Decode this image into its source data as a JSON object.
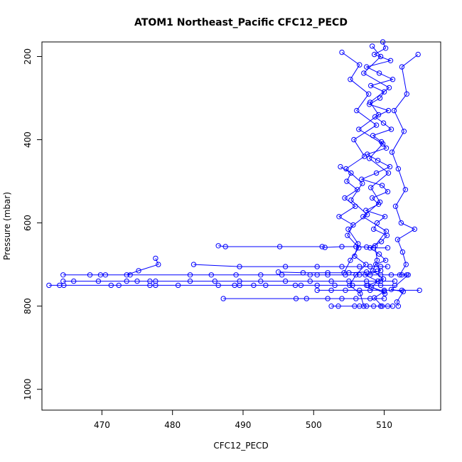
{
  "chart_data": {
    "type": "line",
    "title": "ATOM1 Northeast_Pacific CFC12_PECD",
    "xlabel": "CFC12_PECD",
    "ylabel": "Pressure (mbar)",
    "xlim": [
      461.5,
      518
    ],
    "ylim": [
      1050,
      165
    ],
    "y_inverted": true,
    "x_ticks": [
      470,
      480,
      490,
      500,
      510
    ],
    "y_ticks": [
      200,
      400,
      600,
      800,
      1000
    ],
    "grid": false,
    "legend": "none",
    "marker": "open-circle",
    "color": "#0000ff",
    "series": [
      {
        "values": [
          [
            509.8,
            165
          ],
          [
            510.2,
            180
          ],
          [
            508.6,
            195
          ],
          [
            510.9,
            210
          ],
          [
            507.5,
            225
          ],
          [
            509.3,
            240
          ],
          [
            511.2,
            255
          ],
          [
            508.1,
            270
          ],
          [
            510.0,
            285
          ],
          [
            509.4,
            300
          ],
          [
            507.9,
            315
          ],
          [
            510.6,
            330
          ],
          [
            508.7,
            345
          ],
          [
            509.9,
            360
          ],
          [
            511.0,
            375
          ],
          [
            508.4,
            390
          ],
          [
            509.6,
            405
          ],
          [
            510.3,
            420
          ],
          [
            507.6,
            435
          ],
          [
            509.1,
            450
          ],
          [
            510.8,
            465
          ],
          [
            508.9,
            480
          ],
          [
            506.8,
            495
          ],
          [
            509.7,
            510
          ],
          [
            510.5,
            525
          ],
          [
            508.3,
            540
          ],
          [
            509.2,
            555
          ],
          [
            507.4,
            570
          ],
          [
            510.1,
            585
          ],
          [
            509.0,
            600
          ],
          [
            508.5,
            615
          ],
          [
            510.4,
            630
          ],
          [
            509.6,
            645
          ],
          [
            508.0,
            660
          ],
          [
            509.3,
            675
          ],
          [
            510.2,
            690
          ],
          [
            508.8,
            700
          ],
          [
            509.5,
            715
          ],
          [
            507.3,
            725
          ],
          [
            509.1,
            740
          ],
          [
            508.2,
            755
          ],
          [
            510.0,
            765
          ],
          [
            508.6,
            780
          ],
          [
            509.7,
            800
          ]
        ]
      },
      {
        "values": [
          [
            504.0,
            190
          ],
          [
            506.5,
            220
          ],
          [
            505.2,
            255
          ],
          [
            507.8,
            290
          ],
          [
            506.1,
            330
          ],
          [
            508.9,
            365
          ],
          [
            505.7,
            400
          ],
          [
            507.2,
            440
          ],
          [
            504.6,
            470
          ],
          [
            506.9,
            505
          ],
          [
            505.3,
            545
          ],
          [
            507.6,
            580
          ],
          [
            504.9,
            615
          ],
          [
            506.3,
            650
          ],
          [
            505.8,
            680
          ],
          [
            507.4,
            700
          ],
          [
            506.0,
            725
          ],
          [
            505.1,
            750
          ],
          [
            506.6,
            770
          ],
          [
            507.1,
            800
          ]
        ]
      },
      {
        "values": [
          [
            514.8,
            195
          ],
          [
            512.5,
            225
          ],
          [
            513.2,
            290
          ],
          [
            511.4,
            330
          ],
          [
            512.8,
            380
          ],
          [
            511.1,
            430
          ],
          [
            512.0,
            470
          ],
          [
            513.0,
            520
          ],
          [
            511.6,
            560
          ],
          [
            512.4,
            600
          ],
          [
            514.3,
            615
          ],
          [
            511.9,
            640
          ],
          [
            512.6,
            670
          ],
          [
            513.1,
            700
          ],
          [
            512.2,
            725
          ],
          [
            513.4,
            725
          ],
          [
            511.0,
            760
          ],
          [
            512.7,
            765
          ],
          [
            511.8,
            790
          ],
          [
            512.0,
            800
          ]
        ]
      },
      {
        "values": [
          [
            508.3,
            175
          ],
          [
            509.5,
            200
          ],
          [
            507.1,
            240
          ],
          [
            510.7,
            275
          ],
          [
            508.0,
            310
          ],
          [
            509.2,
            340
          ],
          [
            506.4,
            375
          ],
          [
            509.8,
            410
          ],
          [
            507.9,
            445
          ],
          [
            510.6,
            480
          ],
          [
            508.1,
            515
          ],
          [
            509.4,
            550
          ],
          [
            507.0,
            585
          ],
          [
            510.3,
            620
          ],
          [
            508.7,
            655
          ],
          [
            509.0,
            690
          ],
          [
            508.4,
            715
          ],
          [
            509.9,
            735
          ],
          [
            507.7,
            750
          ],
          [
            510.1,
            770
          ]
        ]
      },
      {
        "values": [
          [
            486.5,
            655
          ],
          [
            487.5,
            657
          ],
          [
            495.2,
            657
          ],
          [
            501.2,
            657
          ],
          [
            501.6,
            659
          ],
          [
            504.0,
            657
          ],
          [
            506.0,
            657
          ],
          [
            507.5,
            658
          ],
          [
            508.5,
            660
          ],
          [
            510.5,
            660
          ]
        ]
      },
      {
        "values": [
          [
            477.6,
            685
          ],
          [
            478.0,
            700
          ],
          [
            475.2,
            715
          ],
          [
            473.5,
            725
          ],
          [
            464.5,
            725
          ],
          [
            468.3,
            725
          ],
          [
            469.8,
            725
          ],
          [
            470.5,
            725
          ],
          [
            474.0,
            725
          ],
          [
            482.5,
            725
          ],
          [
            485.5,
            725
          ],
          [
            489.0,
            725
          ],
          [
            492.5,
            725
          ],
          [
            495.5,
            725
          ],
          [
            499.5,
            725
          ],
          [
            500.5,
            725
          ],
          [
            502.0,
            725
          ],
          [
            504.5,
            725
          ],
          [
            506.5,
            725
          ],
          [
            508.0,
            725
          ],
          [
            509.5,
            725
          ],
          [
            511.0,
            725
          ],
          [
            512.5,
            725
          ],
          [
            513.2,
            725
          ]
        ]
      },
      {
        "values": [
          [
            464.5,
            740
          ],
          [
            466.0,
            740
          ],
          [
            469.5,
            740
          ],
          [
            473.5,
            740
          ],
          [
            475.0,
            740
          ],
          [
            476.8,
            740
          ],
          [
            477.6,
            740
          ],
          [
            482.5,
            740
          ],
          [
            486.0,
            740
          ],
          [
            489.5,
            740
          ],
          [
            492.5,
            740
          ],
          [
            496.0,
            740
          ],
          [
            499.5,
            740
          ],
          [
            502.5,
            740
          ],
          [
            505.0,
            740
          ],
          [
            507.5,
            740
          ],
          [
            509.5,
            740
          ],
          [
            511.5,
            740
          ]
        ]
      },
      {
        "values": [
          [
            462.5,
            750
          ],
          [
            464.0,
            750
          ],
          [
            464.6,
            750
          ],
          [
            471.3,
            750
          ],
          [
            472.4,
            750
          ],
          [
            476.8,
            750
          ],
          [
            477.6,
            750
          ],
          [
            480.8,
            750
          ],
          [
            486.5,
            750
          ],
          [
            488.8,
            750
          ],
          [
            489.5,
            750
          ],
          [
            491.5,
            750
          ],
          [
            493.2,
            750
          ],
          [
            497.4,
            750
          ],
          [
            498.2,
            750
          ],
          [
            500.5,
            750
          ],
          [
            503.0,
            750
          ],
          [
            505.5,
            750
          ],
          [
            507.5,
            750
          ],
          [
            509.5,
            750
          ],
          [
            511.5,
            750
          ]
        ]
      },
      {
        "values": [
          [
            483.0,
            700
          ],
          [
            489.5,
            705
          ],
          [
            496.0,
            705
          ],
          [
            500.5,
            705
          ],
          [
            504.0,
            705
          ],
          [
            506.5,
            705
          ],
          [
            508.0,
            705
          ],
          [
            509.5,
            705
          ],
          [
            510.5,
            705
          ]
        ]
      },
      {
        "values": [
          [
            487.2,
            782
          ],
          [
            497.5,
            782
          ],
          [
            499.0,
            782
          ],
          [
            502.0,
            782
          ],
          [
            504.0,
            782
          ],
          [
            506.0,
            782
          ],
          [
            508.0,
            782
          ],
          [
            510.0,
            782
          ]
        ]
      },
      {
        "values": [
          [
            502.5,
            800
          ],
          [
            503.5,
            800
          ],
          [
            505.8,
            800
          ],
          [
            506.5,
            800
          ],
          [
            507.5,
            800
          ],
          [
            508.5,
            800
          ],
          [
            509.5,
            800
          ],
          [
            510.5,
            800
          ],
          [
            511.2,
            800
          ]
        ]
      },
      {
        "values": [
          [
            500.5,
            762
          ],
          [
            502.5,
            762
          ],
          [
            504.5,
            762
          ],
          [
            506.5,
            762
          ],
          [
            508.0,
            762
          ],
          [
            510.0,
            762
          ],
          [
            512.5,
            762
          ],
          [
            515.0,
            762
          ]
        ]
      },
      {
        "values": [
          [
            495.0,
            718
          ],
          [
            498.5,
            720
          ],
          [
            502.0,
            720
          ],
          [
            505.0,
            720
          ],
          [
            507.5,
            718
          ],
          [
            509.0,
            716
          ]
        ]
      },
      {
        "values": [
          [
            503.8,
            465
          ],
          [
            505.3,
            480
          ],
          [
            504.7,
            500
          ],
          [
            506.2,
            520
          ],
          [
            504.4,
            540
          ],
          [
            505.9,
            560
          ],
          [
            503.6,
            585
          ],
          [
            505.6,
            605
          ],
          [
            504.8,
            630
          ],
          [
            506.4,
            660
          ],
          [
            505.2,
            690
          ],
          [
            504.3,
            720
          ]
        ]
      }
    ]
  }
}
